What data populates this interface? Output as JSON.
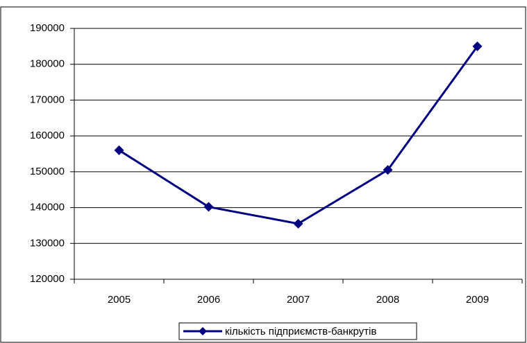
{
  "chart_data": {
    "type": "line",
    "categories": [
      "2005",
      "2006",
      "2007",
      "2008",
      "2009"
    ],
    "series": [
      {
        "name": "кількість підприємств-банкрутів",
        "color": "#000080",
        "values": [
          156000,
          140200,
          135500,
          150500,
          185000
        ]
      }
    ],
    "ylim": [
      120000,
      190000
    ],
    "yticks": [
      120000,
      130000,
      140000,
      150000,
      160000,
      170000,
      180000,
      190000
    ],
    "grid": true,
    "legend": "bottom"
  }
}
